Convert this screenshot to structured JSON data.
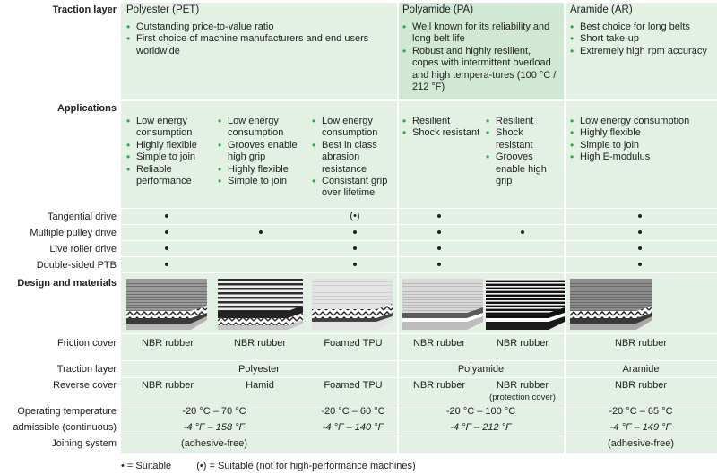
{
  "colors": {
    "band": "#e2f1e3",
    "band_alt": "#d1e9d4",
    "bullet": "#28a745"
  },
  "labels": {
    "traction_layer": "Traction layer",
    "applications": "Applications",
    "tangential_drive": "Tangential drive",
    "multiple_pulley_drive": "Multiple pulley drive",
    "live_roller_drive": "Live roller drive",
    "double_sided_ptb": "Double-sided PTB",
    "design_and_materials": "Design and materials",
    "friction_cover": "Friction cover",
    "traction_layer_2": "Traction layer",
    "reverse_cover": "Reverse cover",
    "operating_temperature": "Operating  temperature",
    "admissible": "admissible (continuous)",
    "joining_system": "Joining system"
  },
  "pet": {
    "title": "Polyester (PET)",
    "features": [
      "Outstanding price-to-value ratio",
      "First choice of machine manufacturers and end users worldwide"
    ]
  },
  "pa": {
    "title": "Polyamide (PA)",
    "features": [
      "Well known for its reliability and long belt life",
      "Robust and highly resilient, copes with intermittent overload and high tempera-tures (100 °C / 212 °F)"
    ]
  },
  "ar": {
    "title": "Aramide (AR)",
    "features": [
      "Best choice for long belts",
      "Short take-up",
      "Extremely high rpm accuracy"
    ]
  },
  "applications": {
    "c1": [
      "Low energy consumption",
      "Highly flexible",
      "Simple to join",
      "Reliable performance"
    ],
    "c2": [
      "Low energy consumption",
      "Grooves enable high grip",
      "Highly flexible",
      "Simple to join"
    ],
    "c3": [
      "Low energy consumption",
      "Best in class abrasion resistance",
      "Consistant grip over lifetime"
    ],
    "c4": [
      "Resilient",
      "Shock resistant"
    ],
    "c5": [
      "Resilient",
      "Shock resistant",
      "Grooves enable high grip"
    ],
    "c6": [
      "Low energy consumption",
      "Highly flexible",
      "Simple to join",
      "High E-modulus"
    ]
  },
  "marks": {
    "suitable_limited": "(•)"
  },
  "friction_cover": [
    "NBR rubber",
    "NBR rubber",
    "Foamed TPU",
    "NBR rubber",
    "NBR rubber",
    "NBR rubber"
  ],
  "traction": {
    "pet": "Polyester",
    "pa": "Polyamide",
    "ar": "Aramide"
  },
  "reverse_cover": [
    "NBR rubber",
    "Hamid",
    "Foamed TPU",
    "NBR rubber",
    "NBR rubber",
    "NBR rubber"
  ],
  "reverse_cover_note": "(protection cover)",
  "temp": {
    "pet12_c": "-20 °C – 70 °C",
    "pet12_f": "-4 °F – 158 °F",
    "pet3_c": "-20 °C – 60 °C",
    "pet3_f": "-4 °F – 140 °F",
    "pa_c": "-20 °C – 100 °C",
    "pa_f": "-4 °F – 212 °F",
    "ar_c": "-20 °C – 65 °C",
    "ar_f": "-4 °F – 149 °F"
  },
  "joining": {
    "pet": "(adhesive-free)",
    "ar": "(adhesive-free)"
  },
  "legend": {
    "suitable": "•  = Suitable",
    "limited": "(•)  =  Suitable (not for high-performance machines)"
  }
}
